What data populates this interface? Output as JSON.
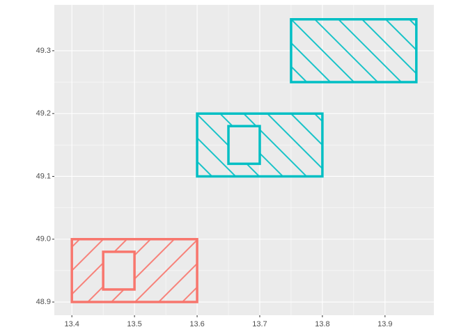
{
  "chart_data": {
    "type": "polygon",
    "xlim": [
      13.372,
      13.978
    ],
    "ylim": [
      48.879,
      49.373
    ],
    "xticks": [
      13.4,
      13.5,
      13.6,
      13.7,
      13.8,
      13.9
    ],
    "yticks": [
      {
        "value": 48.9,
        "label": "48.9"
      },
      {
        "value": 49,
        "label": "49.0"
      },
      {
        "value": 49.1,
        "label": "49.1"
      },
      {
        "value": 49.2,
        "label": "49.2"
      },
      {
        "value": 49.3,
        "label": "49.3"
      }
    ],
    "grid": true,
    "polygons": [
      {
        "color": "#F8766D",
        "pattern": "stripe",
        "pattern_angle": 45,
        "x": [
          13.4,
          13.6,
          13.6,
          13.4
        ],
        "y": [
          48.9,
          48.9,
          49,
          49
        ],
        "hole_x": [
          13.45,
          13.5,
          13.5,
          13.45
        ],
        "hole_y": [
          48.92,
          48.92,
          48.98,
          48.98
        ]
      },
      {
        "color": "#00BFC4",
        "pattern": "stripe",
        "pattern_angle": -45,
        "x": [
          13.6,
          13.8,
          13.8,
          13.6
        ],
        "y": [
          49.1,
          49.1,
          49.2,
          49.2
        ],
        "hole_x": [
          13.65,
          13.7,
          13.7,
          13.65
        ],
        "hole_y": [
          49.12,
          49.12,
          49.18,
          49.18
        ]
      },
      {
        "color": "#00BFC4",
        "pattern": "stripe",
        "pattern_angle": -45,
        "x": [
          13.75,
          13.95,
          13.95,
          13.75
        ],
        "y": [
          49.25,
          49.25,
          49.35,
          49.35
        ]
      }
    ]
  }
}
